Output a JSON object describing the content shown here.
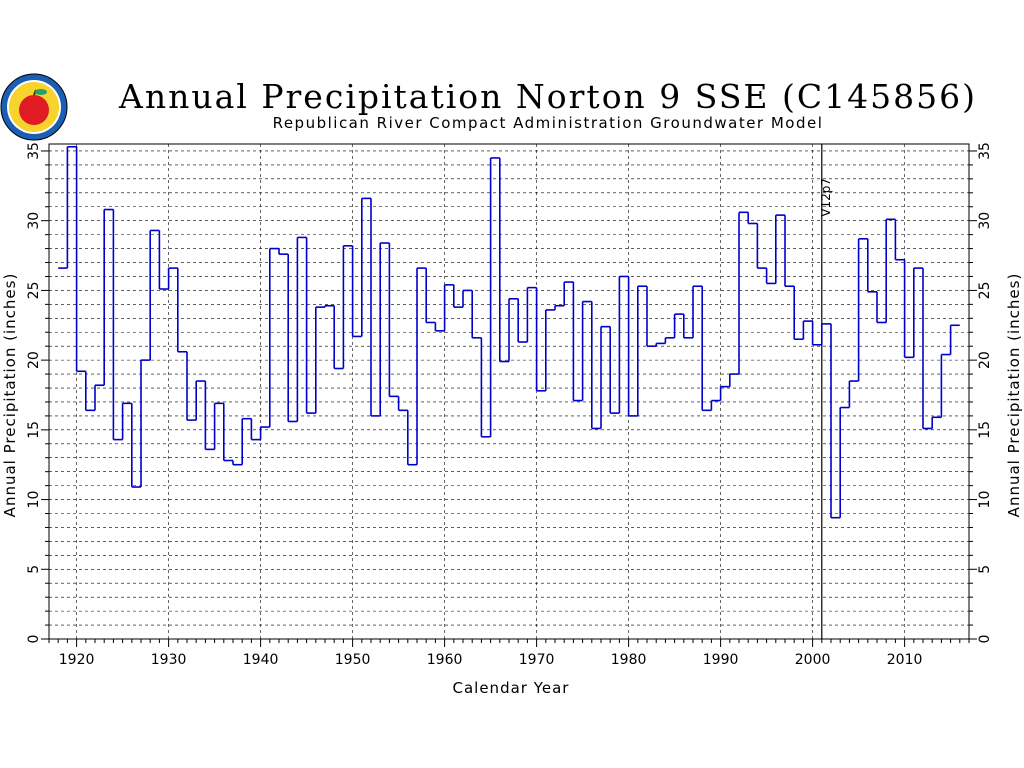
{
  "chart_data": {
    "type": "line",
    "step": true,
    "title": "Annual Precipitation Norton 9 SSE (C145856)",
    "subtitle": "Republican River Compact Administration Groundwater Model",
    "xlabel": "Calendar Year",
    "ylabel": "Annual Precipitation (inches)",
    "ylabel_right": "Annual Precipitation (inches)",
    "xlim": [
      1917,
      2017
    ],
    "ylim": [
      0,
      35.5
    ],
    "x_ticks": [
      1920,
      1930,
      1940,
      1950,
      1960,
      1970,
      1980,
      1990,
      2000,
      2010
    ],
    "y_ticks": [
      0,
      5,
      10,
      15,
      20,
      25,
      30,
      35
    ],
    "grid": true,
    "series_color": "#0000cc",
    "annotation": {
      "text": "V12p7",
      "x": 2001
    },
    "series": [
      {
        "x": [
          1918,
          1919,
          1920,
          1921,
          1922,
          1923,
          1924,
          1925,
          1926,
          1927,
          1928,
          1929,
          1930,
          1931,
          1932,
          1933,
          1934,
          1935,
          1936,
          1937,
          1938,
          1939,
          1940,
          1941,
          1942,
          1943,
          1944,
          1945,
          1946,
          1947,
          1948,
          1949,
          1950,
          1951,
          1952,
          1953,
          1954,
          1955,
          1956,
          1957,
          1958,
          1959,
          1960,
          1961,
          1962,
          1963,
          1964,
          1965,
          1966,
          1967,
          1968,
          1969,
          1970,
          1971,
          1972,
          1973,
          1974,
          1975,
          1976,
          1977,
          1978,
          1979,
          1980,
          1981,
          1982,
          1983,
          1984,
          1985,
          1986,
          1987,
          1988,
          1989,
          1990,
          1991,
          1992,
          1993,
          1994,
          1995,
          1996,
          1997,
          1998,
          1999,
          2000,
          2001,
          2002,
          2003,
          2004,
          2005,
          2006,
          2007,
          2008,
          2009,
          2010,
          2011,
          2012,
          2013,
          2014,
          2015
        ],
        "values": [
          26.6,
          35.3,
          19.2,
          16.4,
          18.2,
          30.8,
          14.3,
          16.9,
          10.9,
          20.0,
          29.3,
          25.1,
          26.6,
          20.6,
          15.7,
          18.5,
          13.6,
          16.9,
          12.8,
          12.5,
          15.8,
          14.3,
          15.2,
          28.0,
          27.6,
          15.6,
          28.8,
          16.2,
          23.8,
          23.9,
          19.4,
          28.2,
          21.7,
          31.6,
          16.0,
          28.4,
          17.4,
          16.4,
          12.5,
          26.6,
          22.7,
          22.1,
          25.4,
          23.8,
          25.0,
          21.6,
          14.5,
          34.5,
          19.9,
          24.4,
          21.3,
          25.2,
          17.8,
          23.6,
          23.9,
          25.6,
          17.1,
          24.2,
          15.1,
          22.4,
          16.2,
          26.0,
          16.0,
          25.3,
          21.0,
          21.2,
          21.6,
          23.3,
          21.6,
          25.3,
          16.4,
          17.1,
          18.1,
          19.0,
          30.6,
          29.8,
          26.6,
          25.5,
          30.4,
          25.3,
          21.5,
          22.8,
          21.1,
          22.6,
          8.7,
          16.6,
          18.5,
          28.7,
          24.9,
          22.7,
          30.1,
          27.2,
          20.2,
          26.6,
          15.1,
          15.9,
          20.4,
          22.5
        ]
      }
    ]
  }
}
